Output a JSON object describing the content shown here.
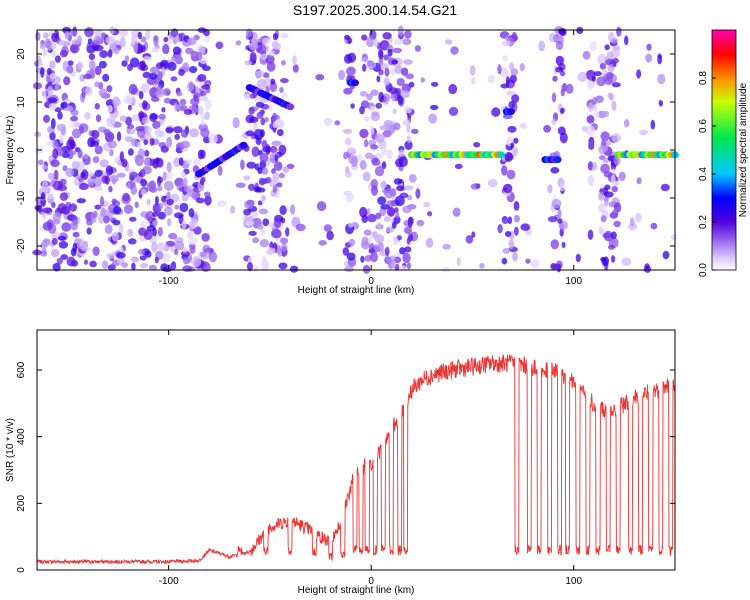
{
  "title": "S197.2025.300.14.54.G21",
  "chart_data": [
    {
      "type": "heatmap",
      "xlabel": "Height of straight line (km)",
      "ylabel": "Frequency (Hz)",
      "xlim": [
        -165,
        150
      ],
      "ylim": [
        -25,
        25
      ],
      "x_ticks": [
        -100,
        0,
        100
      ],
      "y_ticks": [
        -20,
        -10,
        0,
        10,
        20
      ],
      "colorbar": {
        "label": "Normalized spectral amplitude",
        "range": [
          0.0,
          1.0
        ],
        "ticks": [
          0.0,
          0.2,
          0.4,
          0.6,
          0.8
        ],
        "tick_labels": [
          "0.0",
          "0.2",
          "0.4",
          "0.6",
          "0.8"
        ]
      },
      "blank_bands": [
        [
          -80,
          -62
        ],
        [
          -42,
          -12
        ],
        [
          -8,
          -4
        ],
        [
          20,
          65
        ],
        [
          72,
          90
        ],
        [
          95,
          108
        ],
        [
          122,
          150
        ]
      ],
      "features": [
        {
          "name": "diagonal-segment-1",
          "x_start": -85,
          "x_end": -63,
          "f_start": -5,
          "f_end": 1,
          "amplitude": 0.35
        },
        {
          "name": "diagonal-segment-2",
          "x_start": -60,
          "x_end": -40,
          "f_start": 13,
          "f_end": 9,
          "amplitude": 0.35
        },
        {
          "name": "vertical-spike",
          "x_start": -10,
          "x_end": -8,
          "f_start": 14,
          "f_end": 14,
          "amplitude": 0.4
        },
        {
          "name": "bright-band-1",
          "x_start": 20,
          "x_end": 64,
          "f_start": -1,
          "f_end": -1,
          "amplitude": 0.85
        },
        {
          "name": "small-blob",
          "x_start": 67,
          "x_end": 69,
          "f_start": 8,
          "f_end": 8,
          "amplitude": 0.4
        },
        {
          "name": "small-band",
          "x_start": 86,
          "x_end": 92,
          "f_start": -2,
          "f_end": -2,
          "amplitude": 0.4
        },
        {
          "name": "bright-band-2",
          "x_start": 122,
          "x_end": 150,
          "f_start": -1,
          "f_end": -1,
          "amplitude": 0.85
        }
      ]
    },
    {
      "type": "line",
      "xlabel": "Height of straight line (km)",
      "ylabel": "SNR (10 * v/v)",
      "xlim": [
        -165,
        150
      ],
      "ylim": [
        0,
        720
      ],
      "x_ticks": [
        -100,
        0,
        100
      ],
      "y_ticks": [
        0,
        200,
        400,
        600
      ],
      "series": [
        {
          "name": "SNR",
          "color": "#ee3333",
          "x": [
            -165,
            -140,
            -120,
            -100,
            -85,
            -80,
            -75,
            -70,
            -60,
            -50,
            -40,
            -30,
            -20,
            -15,
            -10,
            -5,
            0,
            5,
            10,
            15,
            20,
            25,
            30,
            40,
            50,
            60,
            70,
            75,
            80,
            85,
            90,
            95,
            100,
            105,
            110,
            115,
            120,
            125,
            130,
            135,
            140,
            145,
            150
          ],
          "y": [
            25,
            25,
            25,
            25,
            28,
            60,
            50,
            40,
            55,
            130,
            150,
            120,
            80,
            150,
            250,
            310,
            320,
            360,
            420,
            480,
            540,
            570,
            585,
            600,
            610,
            620,
            620,
            615,
            605,
            595,
            600,
            580,
            560,
            530,
            500,
            480,
            470,
            500,
            520,
            530,
            540,
            550,
            560
          ]
        }
      ],
      "drops": [
        [
          -65,
          60
        ],
        [
          -52,
          55
        ],
        [
          -40,
          60
        ],
        [
          -28,
          55
        ],
        [
          -20,
          40
        ],
        [
          -14,
          40
        ],
        [
          -8,
          60
        ],
        [
          -5,
          60
        ],
        [
          -2,
          60
        ],
        [
          2,
          60
        ],
        [
          6,
          60
        ],
        [
          10,
          60
        ],
        [
          14,
          60
        ],
        [
          17,
          60
        ],
        [
          72,
          60
        ],
        [
          78,
          60
        ],
        [
          83,
          60
        ],
        [
          88,
          60
        ],
        [
          93,
          60
        ],
        [
          97,
          60
        ],
        [
          102,
          60
        ],
        [
          107,
          60
        ],
        [
          112,
          60
        ],
        [
          117,
          60
        ],
        [
          122,
          60
        ],
        [
          128,
          60
        ],
        [
          133,
          60
        ],
        [
          138,
          60
        ],
        [
          143,
          60
        ],
        [
          148,
          60
        ]
      ]
    }
  ]
}
